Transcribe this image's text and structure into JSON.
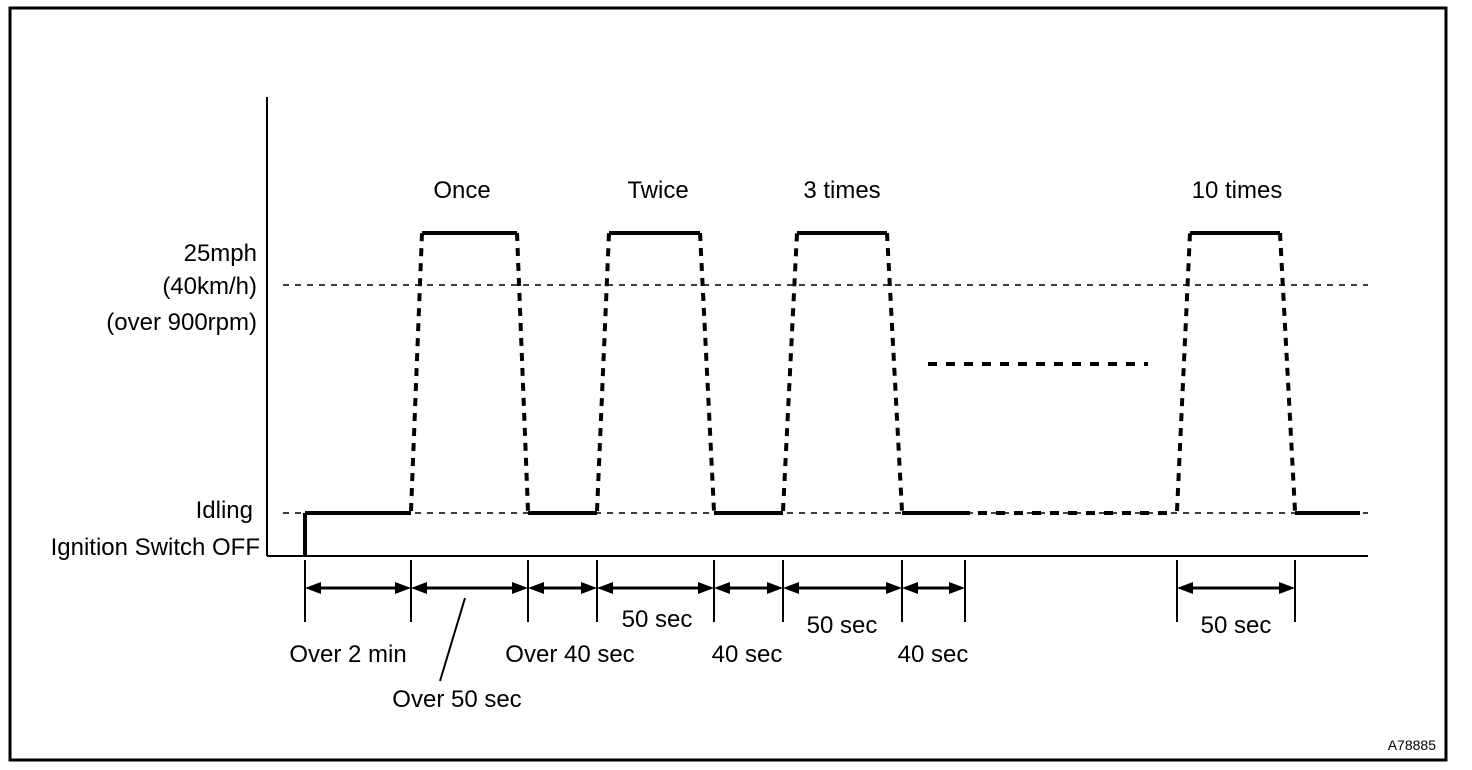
{
  "diagram": {
    "y_labels": {
      "speed_line1": "25mph",
      "speed_line2": "(40km/h)",
      "speed_line3": "(over 900rpm)",
      "idling": "Idling",
      "ignition_off": "Ignition Switch OFF"
    },
    "cycle_labels": [
      "Once",
      "Twice",
      "3 times",
      "10 times"
    ],
    "time_labels": {
      "over_2_min": "Over 2 min",
      "over_50_sec": "Over 50 sec",
      "over_40_sec": "Over 40 sec",
      "sec_50_a": "50 sec",
      "sec_40_a": "40 sec",
      "sec_50_b": "50 sec",
      "sec_40_b": "40 sec",
      "sec_50_c": "50 sec"
    },
    "figure_id": "A78885"
  }
}
